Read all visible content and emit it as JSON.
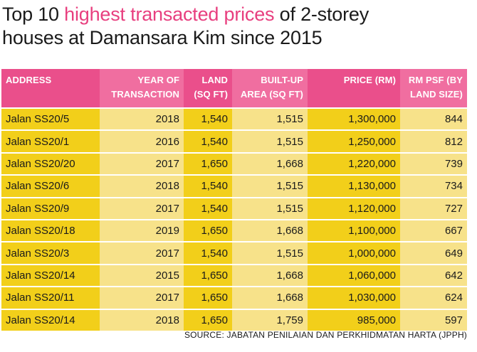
{
  "title": {
    "part1": "Top 10 ",
    "highlight": "highest transacted prices",
    "part2": " of 2-storey",
    "line2": "houses at Damansara Kim since 2015"
  },
  "table": {
    "headers": [
      {
        "line1": "ADDRESS",
        "line2": ""
      },
      {
        "line1": "YEAR OF",
        "line2": "TRANSACTION"
      },
      {
        "line1": "LAND",
        "line2": "(SQ FT)"
      },
      {
        "line1": "BUILT-UP",
        "line2": "AREA (SQ FT)"
      },
      {
        "line1": "PRICE (RM)",
        "line2": ""
      },
      {
        "line1": "RM PSF (BY",
        "line2": "LAND SIZE)"
      }
    ],
    "rows": [
      [
        "Jalan SS20/5",
        "2018",
        "1,540",
        "1,515",
        "1,300,000",
        "844"
      ],
      [
        "Jalan SS20/1",
        "2016",
        "1,540",
        "1,515",
        "1,250,000",
        "812"
      ],
      [
        "Jalan SS20/20",
        "2017",
        "1,650",
        "1,668",
        "1,220,000",
        "739"
      ],
      [
        "Jalan SS20/6",
        "2018",
        "1,540",
        "1,515",
        "1,130,000",
        "734"
      ],
      [
        "Jalan SS20/9",
        "2017",
        "1,540",
        "1,515",
        "1,120,000",
        "727"
      ],
      [
        "Jalan SS20/18",
        "2019",
        "1,650",
        "1,668",
        "1,100,000",
        "667"
      ],
      [
        "Jalan SS20/3",
        "2017",
        "1,540",
        "1,515",
        "1,000,000",
        "649"
      ],
      [
        "Jalan SS20/14",
        "2015",
        "1,650",
        "1,668",
        "1,060,000",
        "642"
      ],
      [
        "Jalan SS20/11",
        "2017",
        "1,650",
        "1,668",
        "1,030,000",
        "624"
      ],
      [
        "Jalan SS20/14",
        "2018",
        "1,650",
        "1,759",
        "985,000",
        "597"
      ]
    ]
  },
  "source": "SOURCE: JABATAN PENILAIAN DAN PERKHIDMATAN HARTA (JPPH)",
  "colors": {
    "highlight": "#e83f7f",
    "header_dark": "#ea4f8b",
    "header_light": "#f06ea0",
    "cell_dark": "#f2cf1a",
    "cell_light": "#f7e28a"
  }
}
